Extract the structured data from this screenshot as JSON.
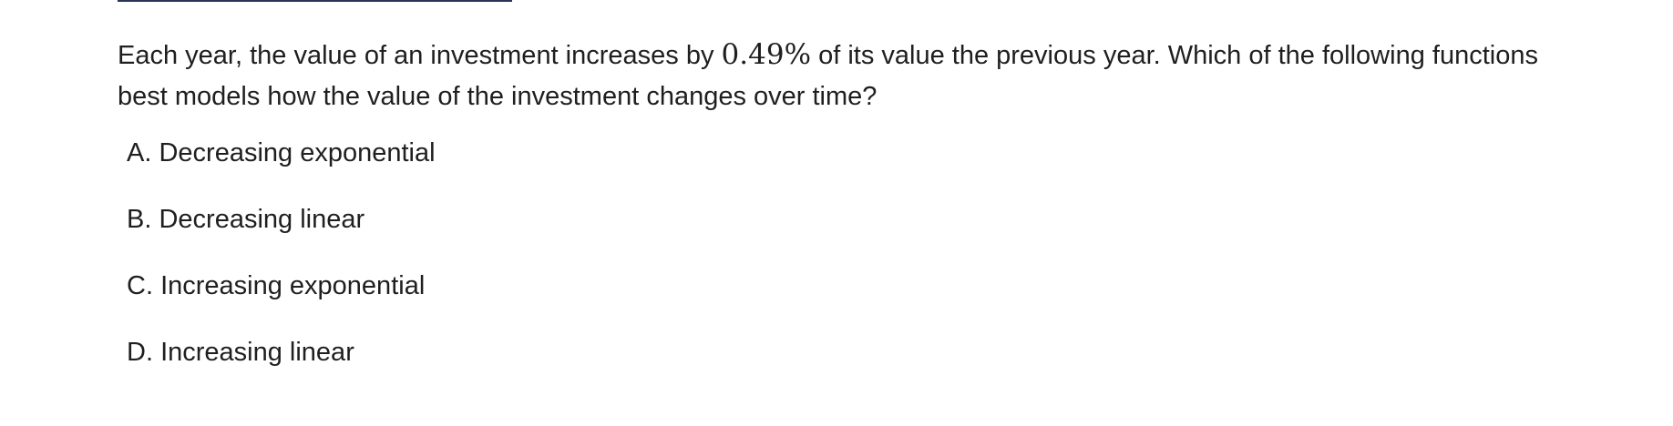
{
  "question": {
    "text_before": "Each year, the value of an investment increases by ",
    "math_value": "0.49%",
    "text_after": " of its value the previous year. Which of the following functions best models how the value of the investment changes over time?"
  },
  "choices": [
    {
      "letter": "A.",
      "text": "Decreasing exponential"
    },
    {
      "letter": "B.",
      "text": "Decreasing linear"
    },
    {
      "letter": "C.",
      "text": "Increasing exponential"
    },
    {
      "letter": "D.",
      "text": "Increasing linear"
    }
  ],
  "colors": {
    "text": "#1f1f1f",
    "top_rule": "#2b3457",
    "background": "#ffffff"
  }
}
